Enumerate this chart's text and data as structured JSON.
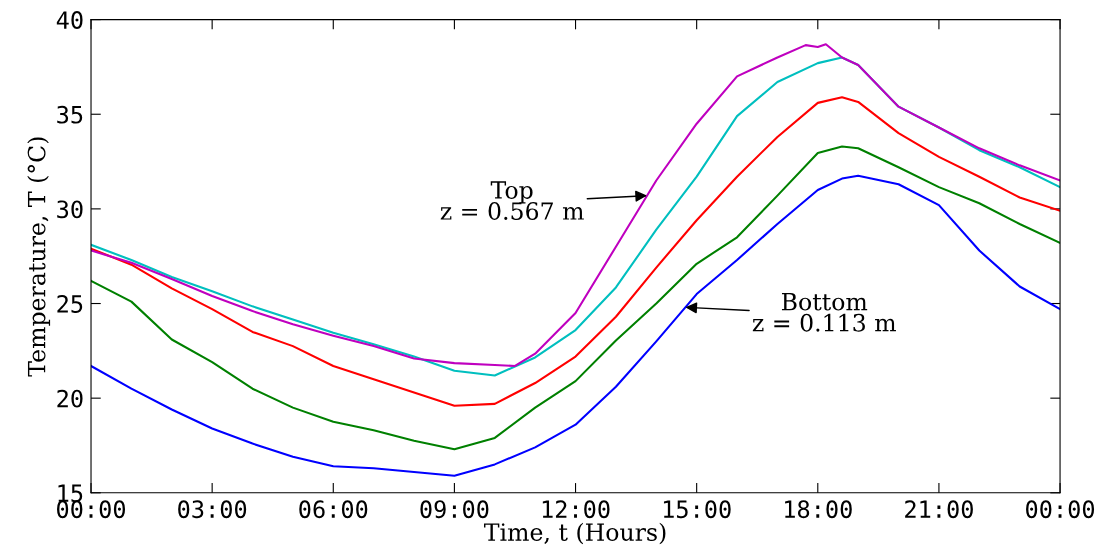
{
  "chart_data": {
    "type": "line",
    "xlabel": "Time, t (Hours)",
    "ylabel": "Temperature, T (°C)",
    "x": [
      0,
      1,
      2,
      3,
      4,
      5,
      6,
      7,
      8,
      9,
      10,
      11,
      12,
      13,
      14,
      15,
      16,
      17,
      18,
      18.6,
      19,
      20,
      21,
      22,
      23,
      24
    ],
    "series": [
      {
        "color": "#0000ff",
        "values": [
          21.7,
          20.5,
          19.4,
          18.4,
          17.6,
          16.9,
          16.4,
          16.3,
          16.1,
          15.9,
          16.5,
          17.4,
          18.6,
          20.6,
          23.0,
          25.5,
          27.3,
          29.2,
          31.0,
          31.6,
          31.75,
          31.3,
          30.2,
          27.8,
          25.9,
          24.7
        ]
      },
      {
        "color": "#008000",
        "values": [
          26.2,
          25.1,
          23.1,
          21.9,
          20.5,
          19.5,
          18.75,
          18.3,
          17.75,
          17.3,
          17.9,
          19.5,
          20.9,
          23.05,
          25.0,
          27.1,
          28.5,
          30.7,
          32.95,
          33.3,
          33.2,
          32.2,
          31.15,
          30.3,
          29.2,
          28.2
        ]
      },
      {
        "color": "#ff0000",
        "values": [
          27.9,
          27.05,
          25.8,
          24.7,
          23.5,
          22.75,
          21.7,
          21.0,
          20.3,
          19.6,
          19.7,
          20.8,
          22.2,
          24.3,
          26.9,
          29.4,
          31.7,
          33.8,
          35.6,
          35.9,
          35.65,
          34.0,
          32.75,
          31.7,
          30.6,
          29.9
        ]
      },
      {
        "color": "#00bfbf",
        "values": [
          28.1,
          27.3,
          26.4,
          25.65,
          24.85,
          24.15,
          23.45,
          22.85,
          22.2,
          21.45,
          21.2,
          22.15,
          23.6,
          25.85,
          28.9,
          31.7,
          34.9,
          36.7,
          37.7,
          38.0,
          37.6,
          35.4,
          34.3,
          33.1,
          32.2,
          31.15
        ]
      },
      {
        "color": "#bf00bf",
        "x": [
          0,
          1,
          2,
          3,
          4,
          5,
          6,
          7,
          8,
          9,
          10,
          10.5,
          11,
          12,
          13,
          14,
          15,
          16,
          17,
          17.7,
          18,
          18.2,
          18.6,
          19,
          20,
          21,
          22,
          23,
          24
        ],
        "values": [
          27.8,
          27.15,
          26.3,
          25.4,
          24.6,
          23.9,
          23.3,
          22.75,
          22.1,
          21.85,
          21.75,
          21.7,
          22.35,
          24.5,
          28.0,
          31.5,
          34.5,
          37.0,
          38.0,
          38.65,
          38.55,
          38.7,
          38.0,
          37.6,
          35.4,
          34.3,
          33.2,
          32.3,
          31.5
        ]
      }
    ],
    "xlim": [
      0,
      24
    ],
    "xticks": [
      {
        "value": 0,
        "label": "00:00"
      },
      {
        "value": 3,
        "label": "03:00"
      },
      {
        "value": 6,
        "label": "06:00"
      },
      {
        "value": 9,
        "label": "09:00"
      },
      {
        "value": 12,
        "label": "12:00"
      },
      {
        "value": 15,
        "label": "15:00"
      },
      {
        "value": 18,
        "label": "18:00"
      },
      {
        "value": 21,
        "label": "21:00"
      },
      {
        "value": 24,
        "label": "00:00"
      }
    ],
    "ylim": [
      15,
      40
    ],
    "yticks": [
      15,
      20,
      25,
      30,
      35,
      40
    ],
    "annotations": [
      {
        "text": "Top\nz = 0.567 m",
        "x": 13.77,
        "y": 30.7
      },
      {
        "text": "Bottom\nz = 0.113 m",
        "x": 14.72,
        "y": 24.8
      }
    ],
    "grid": false,
    "legend": false,
    "marker": "none",
    "line_style": "solid"
  }
}
